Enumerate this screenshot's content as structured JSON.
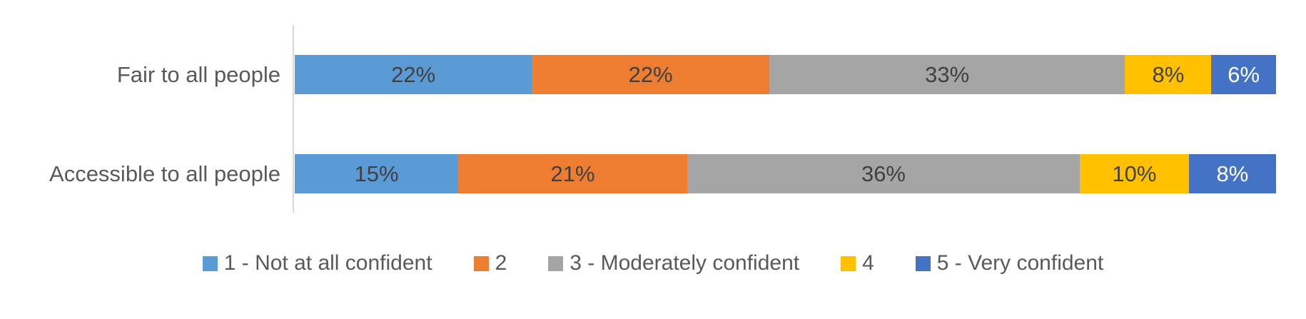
{
  "chart_data": {
    "type": "bar",
    "orientation": "horizontal",
    "stacked": true,
    "percent_stacked": true,
    "title": "",
    "xlabel": "",
    "ylabel": "",
    "grid": false,
    "legend_position": "bottom",
    "axis_line_color": "#d9d9d9",
    "data_label_suffix": "%",
    "categories": [
      "Fair to all people",
      "Accessible to all people"
    ],
    "series": [
      {
        "name": "1 - Not at all confident",
        "color": "#5B9BD5",
        "label_color": "#404040",
        "values": [
          22,
          15
        ]
      },
      {
        "name": "2",
        "color": "#ED7D31",
        "label_color": "#404040",
        "values": [
          22,
          21
        ]
      },
      {
        "name": "3 - Moderately confident",
        "color": "#A5A5A5",
        "label_color": "#404040",
        "values": [
          33,
          36
        ]
      },
      {
        "name": "4",
        "color": "#FFC000",
        "label_color": "#404040",
        "values": [
          8,
          10
        ]
      },
      {
        "name": "5 - Very confident",
        "color": "#4472C4",
        "label_color": "#FFFFFF",
        "values": [
          6,
          8
        ]
      }
    ],
    "data_labels": [
      [
        "22%",
        "22%",
        "33%",
        "8%",
        "6%"
      ],
      [
        "15%",
        "21%",
        "36%",
        "10%",
        "8%"
      ]
    ]
  }
}
